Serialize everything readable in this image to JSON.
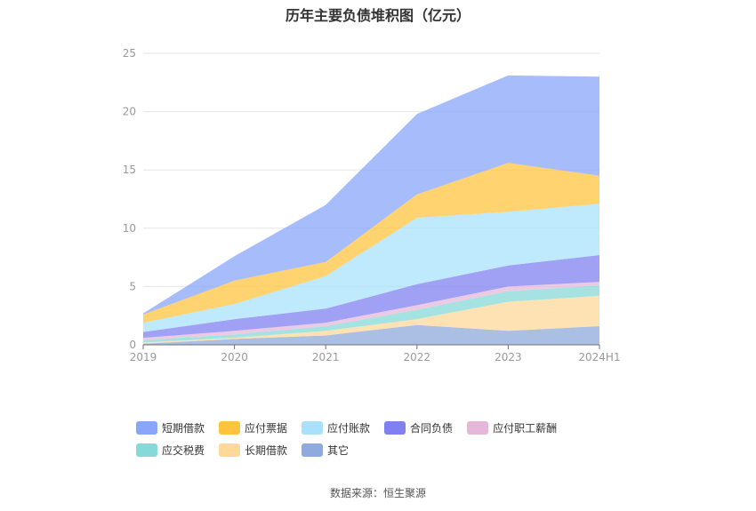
{
  "title": "历年主要负债堆积图（亿元）",
  "source": "数据来源：恒生聚源",
  "chart_data": {
    "type": "area",
    "stacked": true,
    "categories": [
      "2019",
      "2020",
      "2021",
      "2022",
      "2023",
      "2024H1"
    ],
    "ylim": [
      0,
      25
    ],
    "yticks": [
      "0",
      "5",
      "10",
      "15",
      "20",
      "25"
    ],
    "grid": true,
    "legend_position": "bottom",
    "series": [
      {
        "name": "其它",
        "color": "#8faadc",
        "values": [
          0.1,
          0.5,
          0.8,
          1.7,
          1.2,
          1.6
        ]
      },
      {
        "name": "长期借款",
        "color": "#ffd89a",
        "values": [
          0.1,
          0.1,
          0.4,
          0.5,
          2.5,
          2.6
        ]
      },
      {
        "name": "应交税费",
        "color": "#87d9d9",
        "values": [
          0.2,
          0.3,
          0.4,
          0.8,
          0.9,
          0.9
        ]
      },
      {
        "name": "应付职工薪酬",
        "color": "#e5b8da",
        "values": [
          0.2,
          0.3,
          0.3,
          0.4,
          0.4,
          0.3
        ]
      },
      {
        "name": "合同负债",
        "color": "#8080f0",
        "values": [
          0.5,
          1.0,
          1.2,
          1.8,
          1.8,
          2.3
        ]
      },
      {
        "name": "应付账款",
        "color": "#a9e1fb",
        "values": [
          0.8,
          1.3,
          2.8,
          5.7,
          4.6,
          4.4
        ]
      },
      {
        "name": "应付票据",
        "color": "#ffc43f",
        "values": [
          0.7,
          2.0,
          1.2,
          2.0,
          4.2,
          2.4
        ]
      },
      {
        "name": "短期借款",
        "color": "#8aa6fa",
        "values": [
          0.1,
          2.1,
          4.9,
          6.9,
          7.5,
          8.5
        ]
      }
    ]
  }
}
